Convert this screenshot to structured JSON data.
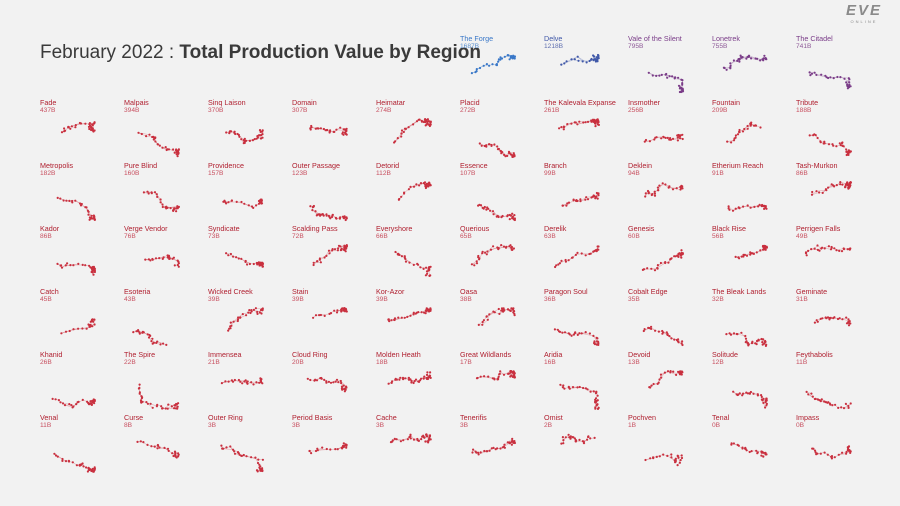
{
  "header": {
    "title_prefix": "February 2022 : ",
    "title_main": "Total Production Value by Region",
    "logo": "EVE",
    "logo_sub": "ONLINE"
  },
  "colors": {
    "red": "#c9303f",
    "blue": "#3a78c8",
    "navy": "#4058a8",
    "purple": "#7a3c88"
  },
  "chart_data": {
    "type": "small-multiples",
    "title": "February 2022 : Total Production Value by Region",
    "unit": "B",
    "regions": [
      {
        "name": "The Forge",
        "value": "1687B",
        "color": "blue"
      },
      {
        "name": "Delve",
        "value": "1218B",
        "color": "navy"
      },
      {
        "name": "Vale of the Silent",
        "value": "795B",
        "color": "purple"
      },
      {
        "name": "Lonetrek",
        "value": "755B",
        "color": "purple"
      },
      {
        "name": "The Citadel",
        "value": "741B",
        "color": "purple"
      },
      {
        "name": "Fade",
        "value": "437B",
        "color": "red"
      },
      {
        "name": "Malpais",
        "value": "394B",
        "color": "red"
      },
      {
        "name": "Sinq Laison",
        "value": "370B",
        "color": "red"
      },
      {
        "name": "Domain",
        "value": "307B",
        "color": "red"
      },
      {
        "name": "Heimatar",
        "value": "274B",
        "color": "red"
      },
      {
        "name": "Placid",
        "value": "272B",
        "color": "red"
      },
      {
        "name": "The Kalevala Expanse",
        "value": "261B",
        "color": "red"
      },
      {
        "name": "Insmother",
        "value": "256B",
        "color": "red"
      },
      {
        "name": "Fountain",
        "value": "209B",
        "color": "red"
      },
      {
        "name": "Tribute",
        "value": "188B",
        "color": "red"
      },
      {
        "name": "Metropolis",
        "value": "182B",
        "color": "red"
      },
      {
        "name": "Pure Blind",
        "value": "160B",
        "color": "red"
      },
      {
        "name": "Providence",
        "value": "157B",
        "color": "red"
      },
      {
        "name": "Outer Passage",
        "value": "123B",
        "color": "red"
      },
      {
        "name": "Detorid",
        "value": "112B",
        "color": "red"
      },
      {
        "name": "Essence",
        "value": "107B",
        "color": "red"
      },
      {
        "name": "Branch",
        "value": "99B",
        "color": "red"
      },
      {
        "name": "Deklein",
        "value": "94B",
        "color": "red"
      },
      {
        "name": "Etherium Reach",
        "value": "91B",
        "color": "red"
      },
      {
        "name": "Tash-Murkon",
        "value": "86B",
        "color": "red"
      },
      {
        "name": "Kador",
        "value": "86B",
        "color": "red"
      },
      {
        "name": "Verge Vendor",
        "value": "76B",
        "color": "red"
      },
      {
        "name": "Syndicate",
        "value": "73B",
        "color": "red"
      },
      {
        "name": "Scalding Pass",
        "value": "72B",
        "color": "red"
      },
      {
        "name": "Everyshore",
        "value": "66B",
        "color": "red"
      },
      {
        "name": "Querious",
        "value": "65B",
        "color": "red"
      },
      {
        "name": "Derelik",
        "value": "63B",
        "color": "red"
      },
      {
        "name": "Genesis",
        "value": "60B",
        "color": "red"
      },
      {
        "name": "Black Rise",
        "value": "56B",
        "color": "red"
      },
      {
        "name": "Perrigen Falls",
        "value": "49B",
        "color": "red"
      },
      {
        "name": "Catch",
        "value": "45B",
        "color": "red"
      },
      {
        "name": "Esoteria",
        "value": "43B",
        "color": "red"
      },
      {
        "name": "Wicked Creek",
        "value": "39B",
        "color": "red"
      },
      {
        "name": "Stain",
        "value": "39B",
        "color": "red"
      },
      {
        "name": "Kor-Azor",
        "value": "39B",
        "color": "red"
      },
      {
        "name": "Oasa",
        "value": "38B",
        "color": "red"
      },
      {
        "name": "Paragon Soul",
        "value": "36B",
        "color": "red"
      },
      {
        "name": "Cobalt Edge",
        "value": "35B",
        "color": "red"
      },
      {
        "name": "The Bleak Lands",
        "value": "32B",
        "color": "red"
      },
      {
        "name": "Geminate",
        "value": "31B",
        "color": "red"
      },
      {
        "name": "Khanid",
        "value": "26B",
        "color": "red"
      },
      {
        "name": "The Spire",
        "value": "22B",
        "color": "red"
      },
      {
        "name": "Immensea",
        "value": "21B",
        "color": "red"
      },
      {
        "name": "Cloud Ring",
        "value": "20B",
        "color": "red"
      },
      {
        "name": "Molden Heath",
        "value": "18B",
        "color": "red"
      },
      {
        "name": "Great Wildlands",
        "value": "17B",
        "color": "red"
      },
      {
        "name": "Aridia",
        "value": "16B",
        "color": "red"
      },
      {
        "name": "Devoid",
        "value": "13B",
        "color": "red"
      },
      {
        "name": "Solitude",
        "value": "12B",
        "color": "red"
      },
      {
        "name": "Feythabolis",
        "value": "11B",
        "color": "red"
      },
      {
        "name": "Venal",
        "value": "11B",
        "color": "red"
      },
      {
        "name": "Curse",
        "value": "8B",
        "color": "red"
      },
      {
        "name": "Outer Ring",
        "value": "3B",
        "color": "red"
      },
      {
        "name": "Period Basis",
        "value": "3B",
        "color": "red"
      },
      {
        "name": "Cache",
        "value": "3B",
        "color": "red"
      },
      {
        "name": "Tenerifis",
        "value": "3B",
        "color": "red"
      },
      {
        "name": "Omist",
        "value": "2B",
        "color": "red"
      },
      {
        "name": "Pochven",
        "value": "1B",
        "color": "red"
      },
      {
        "name": "Tenal",
        "value": "0B",
        "color": "red"
      },
      {
        "name": "Impass",
        "value": "0B",
        "color": "red"
      }
    ]
  }
}
